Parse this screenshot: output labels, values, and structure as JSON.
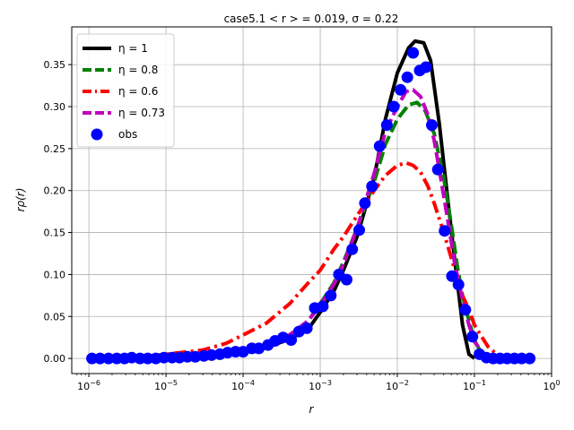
{
  "chart_data": {
    "type": "line",
    "title": "case5.1  < r > = 0.019, σ = 0.22",
    "xlabel": "r",
    "ylabel": "rρ(r)",
    "xscale": "log",
    "xlim": [
      6e-07,
      1.0
    ],
    "ylim": [
      -0.018,
      0.395
    ],
    "grid": true,
    "legend_position": "top-left",
    "x_ticks": [
      {
        "value": 1e-06,
        "base": "10",
        "exp": "−6"
      },
      {
        "value": 1e-05,
        "base": "10",
        "exp": "−5"
      },
      {
        "value": 0.0001,
        "base": "10",
        "exp": "−4"
      },
      {
        "value": 0.001,
        "base": "10",
        "exp": "−3"
      },
      {
        "value": 0.01,
        "base": "10",
        "exp": "−2"
      },
      {
        "value": 0.1,
        "base": "10",
        "exp": "−1"
      },
      {
        "value": 1,
        "base": "10",
        "exp": "0"
      }
    ],
    "y_ticks": [
      {
        "value": 0.0,
        "label": "0.00"
      },
      {
        "value": 0.05,
        "label": "0.05"
      },
      {
        "value": 0.1,
        "label": "0.10"
      },
      {
        "value": 0.15,
        "label": "0.15"
      },
      {
        "value": 0.2,
        "label": "0.20"
      },
      {
        "value": 0.25,
        "label": "0.25"
      },
      {
        "value": 0.3,
        "label": "0.30"
      },
      {
        "value": 0.35,
        "label": "0.35"
      }
    ],
    "series": [
      {
        "name": "η = 1",
        "color": "#000000",
        "style": "solid",
        "points": [
          [
            1e-05,
            0.0
          ],
          [
            3e-05,
            0.001
          ],
          [
            5e-05,
            0.004
          ],
          [
            0.0001,
            0.008
          ],
          [
            0.0002,
            0.013
          ],
          [
            0.0004,
            0.023
          ],
          [
            0.0007,
            0.035
          ],
          [
            0.001,
            0.055
          ],
          [
            0.0015,
            0.08
          ],
          [
            0.002,
            0.105
          ],
          [
            0.003,
            0.145
          ],
          [
            0.005,
            0.215
          ],
          [
            0.007,
            0.285
          ],
          [
            0.01,
            0.34
          ],
          [
            0.014,
            0.37
          ],
          [
            0.017,
            0.378
          ],
          [
            0.022,
            0.376
          ],
          [
            0.027,
            0.355
          ],
          [
            0.035,
            0.28
          ],
          [
            0.045,
            0.19
          ],
          [
            0.055,
            0.12
          ],
          [
            0.07,
            0.04
          ],
          [
            0.085,
            0.005
          ],
          [
            0.1,
            0.0
          ]
        ]
      },
      {
        "name": "η = 0.8",
        "color": "#008000",
        "style": "dashed",
        "points": [
          [
            1e-05,
            0.002
          ],
          [
            3e-05,
            0.003
          ],
          [
            5e-05,
            0.005
          ],
          [
            0.0001,
            0.009
          ],
          [
            0.0002,
            0.016
          ],
          [
            0.0003,
            0.022
          ],
          [
            0.0005,
            0.033
          ],
          [
            0.0007,
            0.045
          ],
          [
            0.001,
            0.065
          ],
          [
            0.0015,
            0.09
          ],
          [
            0.002,
            0.115
          ],
          [
            0.003,
            0.155
          ],
          [
            0.005,
            0.21
          ],
          [
            0.007,
            0.255
          ],
          [
            0.01,
            0.285
          ],
          [
            0.014,
            0.302
          ],
          [
            0.018,
            0.305
          ],
          [
            0.023,
            0.295
          ],
          [
            0.03,
            0.268
          ],
          [
            0.04,
            0.215
          ],
          [
            0.05,
            0.16
          ],
          [
            0.06,
            0.11
          ],
          [
            0.07,
            0.075
          ],
          [
            0.085,
            0.045
          ],
          [
            0.1,
            0.022
          ],
          [
            0.12,
            0.008
          ],
          [
            0.14,
            0.002
          ],
          [
            0.2,
            0.0
          ]
        ]
      },
      {
        "name": "η = 0.6",
        "color": "#ff0000",
        "style": "dashdot",
        "points": [
          [
            3e-06,
            0.0
          ],
          [
            1e-05,
            0.005
          ],
          [
            3e-05,
            0.01
          ],
          [
            6e-05,
            0.018
          ],
          [
            0.0001,
            0.028
          ],
          [
            0.0002,
            0.042
          ],
          [
            0.0004,
            0.065
          ],
          [
            0.0007,
            0.09
          ],
          [
            0.001,
            0.105
          ],
          [
            0.0015,
            0.13
          ],
          [
            0.002,
            0.145
          ],
          [
            0.003,
            0.17
          ],
          [
            0.005,
            0.2
          ],
          [
            0.007,
            0.218
          ],
          [
            0.01,
            0.23
          ],
          [
            0.013,
            0.233
          ],
          [
            0.016,
            0.23
          ],
          [
            0.02,
            0.222
          ],
          [
            0.025,
            0.205
          ],
          [
            0.03,
            0.185
          ],
          [
            0.04,
            0.15
          ],
          [
            0.05,
            0.12
          ],
          [
            0.06,
            0.095
          ],
          [
            0.07,
            0.075
          ],
          [
            0.085,
            0.058
          ],
          [
            0.1,
            0.04
          ],
          [
            0.12,
            0.028
          ],
          [
            0.15,
            0.014
          ],
          [
            0.2,
            0.004
          ],
          [
            0.3,
            0.0
          ]
        ]
      },
      {
        "name": "η = 0.73",
        "color": "#bf00bf",
        "style": "dashed",
        "points": [
          [
            1e-05,
            0.001
          ],
          [
            3e-05,
            0.003
          ],
          [
            5e-05,
            0.005
          ],
          [
            0.0001,
            0.009
          ],
          [
            0.0002,
            0.015
          ],
          [
            0.0004,
            0.028
          ],
          [
            0.0007,
            0.045
          ],
          [
            0.001,
            0.063
          ],
          [
            0.0015,
            0.088
          ],
          [
            0.002,
            0.112
          ],
          [
            0.003,
            0.155
          ],
          [
            0.005,
            0.22
          ],
          [
            0.007,
            0.27
          ],
          [
            0.01,
            0.3
          ],
          [
            0.013,
            0.318
          ],
          [
            0.016,
            0.32
          ],
          [
            0.02,
            0.312
          ],
          [
            0.025,
            0.29
          ],
          [
            0.03,
            0.26
          ],
          [
            0.035,
            0.225
          ],
          [
            0.045,
            0.165
          ],
          [
            0.055,
            0.115
          ],
          [
            0.07,
            0.07
          ],
          [
            0.085,
            0.04
          ],
          [
            0.1,
            0.02
          ],
          [
            0.13,
            0.006
          ],
          [
            0.18,
            0.001
          ]
        ]
      }
    ],
    "observations": {
      "name": "obs",
      "color": "#0000ff",
      "points": [
        [
          1.1e-06,
          0.0
        ],
        [
          1.4e-06,
          0.0
        ],
        [
          1.8e-06,
          0.0
        ],
        [
          2.3e-06,
          0.0
        ],
        [
          2.9e-06,
          0.0
        ],
        [
          3.6e-06,
          0.001
        ],
        [
          4.6e-06,
          0.0
        ],
        [
          5.8e-06,
          0.0
        ],
        [
          7.4e-06,
          0.0
        ],
        [
          9.4e-06,
          0.001
        ],
        [
          1.2e-05,
          0.001
        ],
        [
          1.5e-05,
          0.001
        ],
        [
          1.9e-05,
          0.002
        ],
        [
          2.4e-05,
          0.002
        ],
        [
          3.1e-05,
          0.003
        ],
        [
          3.9e-05,
          0.004
        ],
        [
          5e-05,
          0.005
        ],
        [
          6.3e-05,
          0.007
        ],
        [
          8e-05,
          0.008
        ],
        [
          0.0001,
          0.008
        ],
        [
          0.00013,
          0.012
        ],
        [
          0.00016,
          0.012
        ],
        [
          0.00021,
          0.016
        ],
        [
          0.00026,
          0.021
        ],
        [
          0.00033,
          0.025
        ],
        [
          0.00042,
          0.022
        ],
        [
          0.00053,
          0.032
        ],
        [
          0.00067,
          0.036
        ],
        [
          0.00085,
          0.06
        ],
        [
          0.00108,
          0.062
        ],
        [
          0.00137,
          0.075
        ],
        [
          0.00175,
          0.1
        ],
        [
          0.0022,
          0.094
        ],
        [
          0.0026,
          0.13
        ],
        [
          0.0032,
          0.153
        ],
        [
          0.0038,
          0.185
        ],
        [
          0.0047,
          0.205
        ],
        [
          0.0059,
          0.253
        ],
        [
          0.0073,
          0.278
        ],
        [
          0.009,
          0.3
        ],
        [
          0.011,
          0.32
        ],
        [
          0.0135,
          0.335
        ],
        [
          0.016,
          0.364
        ],
        [
          0.0195,
          0.343
        ],
        [
          0.0235,
          0.347
        ],
        [
          0.028,
          0.278
        ],
        [
          0.0335,
          0.225
        ],
        [
          0.041,
          0.152
        ],
        [
          0.051,
          0.098
        ],
        [
          0.062,
          0.088
        ],
        [
          0.076,
          0.058
        ],
        [
          0.094,
          0.026
        ],
        [
          0.116,
          0.005
        ],
        [
          0.143,
          0.001
        ],
        [
          0.175,
          0.0
        ],
        [
          0.215,
          0.0
        ],
        [
          0.265,
          0.0
        ],
        [
          0.33,
          0.0
        ],
        [
          0.41,
          0.0
        ],
        [
          0.52,
          0.0
        ]
      ]
    }
  }
}
